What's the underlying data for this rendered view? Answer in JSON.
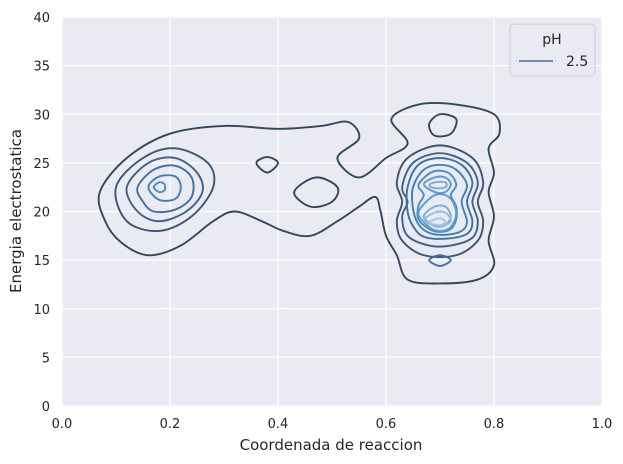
{
  "chart_data": {
    "type": "kde-contour",
    "xlabel": "Coordenada de reaccion",
    "ylabel": "Energia electrostatica",
    "xlim": [
      0.0,
      1.0
    ],
    "ylim": [
      0,
      40
    ],
    "x_ticks": [
      "0.0",
      "0.2",
      "0.4",
      "0.6",
      "0.8",
      "1.0"
    ],
    "y_ticks": [
      "0",
      "5",
      "10",
      "15",
      "20",
      "25",
      "30",
      "35",
      "40"
    ],
    "grid": true,
    "legend": {
      "title": "pH",
      "placement": "top-right",
      "entries": [
        {
          "label": "2.5",
          "color": "#4169a8"
        }
      ]
    },
    "colors": {
      "background": "#eaeaf2",
      "grid": "#ffffff",
      "outer_level": "#33475b",
      "inner_level": "#a5c8e6"
    },
    "levels": [
      {
        "level": 1,
        "color": "#33475b",
        "contours": [
          [
            [
              0.07,
              22
            ],
            [
              0.12,
              25.5
            ],
            [
              0.2,
              28
            ],
            [
              0.3,
              28.8
            ],
            [
              0.4,
              28.5
            ],
            [
              0.48,
              28.8
            ],
            [
              0.53,
              29.2
            ],
            [
              0.55,
              27.5
            ],
            [
              0.51,
              25.5
            ],
            [
              0.55,
              23.5
            ],
            [
              0.6,
              25.5
            ],
            [
              0.64,
              27
            ],
            [
              0.61,
              29.5
            ],
            [
              0.66,
              31
            ],
            [
              0.73,
              31
            ],
            [
              0.8,
              30
            ],
            [
              0.81,
              28
            ],
            [
              0.79,
              26.5
            ],
            [
              0.8,
              24
            ],
            [
              0.79,
              22
            ],
            [
              0.8,
              19.5
            ],
            [
              0.79,
              17
            ],
            [
              0.8,
              14.5
            ],
            [
              0.77,
              13
            ],
            [
              0.7,
              12.6
            ],
            [
              0.64,
              13
            ],
            [
              0.62,
              15.5
            ],
            [
              0.6,
              17.5
            ],
            [
              0.59,
              20
            ],
            [
              0.58,
              21.5
            ],
            [
              0.55,
              20.5
            ],
            [
              0.51,
              19
            ],
            [
              0.46,
              17.5
            ],
            [
              0.41,
              18
            ],
            [
              0.37,
              19
            ],
            [
              0.32,
              20
            ],
            [
              0.28,
              19
            ],
            [
              0.22,
              16.5
            ],
            [
              0.16,
              15.5
            ],
            [
              0.11,
              16.8
            ],
            [
              0.08,
              19
            ]
          ],
          [
            [
              0.36,
              25
            ],
            [
              0.38,
              24
            ],
            [
              0.4,
              25
            ],
            [
              0.38,
              25.6
            ]
          ],
          [
            [
              0.43,
              22
            ],
            [
              0.47,
              23.5
            ],
            [
              0.51,
              22.5
            ],
            [
              0.5,
              21
            ],
            [
              0.46,
              20.5
            ]
          ],
          [
            [
              0.68,
              29
            ],
            [
              0.7,
              30
            ],
            [
              0.73,
              29.5
            ],
            [
              0.72,
              28
            ],
            [
              0.69,
              27.8
            ]
          ]
        ]
      },
      {
        "level": 2,
        "color": "#3b5573",
        "contours": [
          [
            [
              0.1,
              22.5
            ],
            [
              0.15,
              25.5
            ],
            [
              0.21,
              26.5
            ],
            [
              0.27,
              25
            ],
            [
              0.28,
              22.5
            ],
            [
              0.24,
              19.5
            ],
            [
              0.18,
              18
            ],
            [
              0.12,
              19
            ]
          ],
          [
            [
              0.62,
              23
            ],
            [
              0.64,
              25.5
            ],
            [
              0.7,
              26.8
            ],
            [
              0.76,
              25.5
            ],
            [
              0.78,
              23
            ],
            [
              0.77,
              21
            ],
            [
              0.78,
              19
            ],
            [
              0.77,
              17
            ],
            [
              0.73,
              15.5
            ],
            [
              0.67,
              15.5
            ],
            [
              0.63,
              17
            ],
            [
              0.62,
              19
            ],
            [
              0.63,
              21
            ]
          ]
        ]
      },
      {
        "level": 3,
        "color": "#3d6289",
        "contours": [
          [
            [
              0.12,
              22.5
            ],
            [
              0.16,
              25
            ],
            [
              0.21,
              25.5
            ],
            [
              0.25,
              24
            ],
            [
              0.26,
              22
            ],
            [
              0.23,
              20
            ],
            [
              0.18,
              19
            ],
            [
              0.14,
              20
            ]
          ],
          [
            [
              0.63,
              22.5
            ],
            [
              0.65,
              25
            ],
            [
              0.7,
              26
            ],
            [
              0.75,
              25
            ],
            [
              0.77,
              23
            ],
            [
              0.76,
              21
            ],
            [
              0.77,
              19
            ],
            [
              0.76,
              17.3
            ],
            [
              0.72,
              16.5
            ],
            [
              0.68,
              16.5
            ],
            [
              0.64,
              17.5
            ],
            [
              0.63,
              19.5
            ],
            [
              0.64,
              21
            ]
          ]
        ]
      },
      {
        "level": 4,
        "color": "#3f6f9f",
        "contours": [
          [
            [
              0.14,
              22.5
            ],
            [
              0.17,
              24.3
            ],
            [
              0.21,
              24.7
            ],
            [
              0.24,
              23.5
            ],
            [
              0.24,
              21.5
            ],
            [
              0.21,
              20.2
            ],
            [
              0.17,
              20
            ],
            [
              0.15,
              21
            ]
          ],
          [
            [
              0.64,
              22.5
            ],
            [
              0.66,
              24.8
            ],
            [
              0.7,
              25.5
            ],
            [
              0.74,
              24.8
            ],
            [
              0.76,
              23
            ],
            [
              0.75,
              21
            ],
            [
              0.76,
              19
            ],
            [
              0.75,
              17.7
            ],
            [
              0.71,
              17.2
            ],
            [
              0.67,
              17.4
            ],
            [
              0.65,
              18.5
            ],
            [
              0.64,
              20
            ]
          ],
          [
            [
              0.68,
              15
            ],
            [
              0.7,
              15.5
            ],
            [
              0.72,
              15
            ],
            [
              0.7,
              14.4
            ]
          ]
        ]
      },
      {
        "level": 5,
        "color": "#437fb3",
        "contours": [
          [
            [
              0.16,
              22.5
            ],
            [
              0.18,
              23.6
            ],
            [
              0.21,
              23.6
            ],
            [
              0.22,
              22.5
            ],
            [
              0.21,
              21.3
            ],
            [
              0.18,
              21.2
            ]
          ],
          [
            [
              0.65,
              22.5
            ],
            [
              0.67,
              24.3
            ],
            [
              0.7,
              24.8
            ],
            [
              0.73,
              24.3
            ],
            [
              0.75,
              22.7
            ],
            [
              0.74,
              21
            ],
            [
              0.75,
              19
            ],
            [
              0.74,
              18
            ],
            [
              0.71,
              17.6
            ],
            [
              0.68,
              17.8
            ],
            [
              0.66,
              18.7
            ],
            [
              0.65,
              20.3
            ]
          ]
        ]
      },
      {
        "level": 6,
        "color": "#4a8cc2",
        "contours": [
          [
            [
              0.17,
              22.5
            ],
            [
              0.18,
              23
            ],
            [
              0.19,
              22.8
            ],
            [
              0.19,
              22.2
            ],
            [
              0.18,
              22
            ]
          ],
          [
            [
              0.66,
              22.7
            ],
            [
              0.68,
              23.9
            ],
            [
              0.7,
              24.2
            ],
            [
              0.72,
              23.8
            ],
            [
              0.73,
              22.7
            ],
            [
              0.72,
              21.7
            ],
            [
              0.73,
              20.5
            ],
            [
              0.73,
              19.2
            ],
            [
              0.72,
              18.2
            ],
            [
              0.7,
              17.9
            ],
            [
              0.68,
              18.2
            ],
            [
              0.66,
              19.2
            ],
            [
              0.66,
              20.6
            ],
            [
              0.67,
              21.7
            ]
          ]
        ]
      },
      {
        "level": 7,
        "color": "#5d9ccd",
        "contours": [
          [
            [
              0.67,
              22.8
            ],
            [
              0.69,
              23.5
            ],
            [
              0.71,
              23.5
            ],
            [
              0.72,
              22.8
            ],
            [
              0.71,
              22
            ],
            [
              0.69,
              22
            ]
          ],
          [
            [
              0.66,
              19.8
            ],
            [
              0.68,
              21.3
            ],
            [
              0.7,
              21.8
            ],
            [
              0.72,
              21.3
            ],
            [
              0.73,
              19.8
            ],
            [
              0.72,
              18.4
            ],
            [
              0.7,
              18
            ],
            [
              0.68,
              18.4
            ]
          ]
        ]
      },
      {
        "level": 8,
        "color": "#78aed6",
        "contours": [
          [
            [
              0.68,
              22.7
            ],
            [
              0.69,
              23
            ],
            [
              0.71,
              23
            ],
            [
              0.71,
              22.5
            ],
            [
              0.69,
              22.4
            ]
          ],
          [
            [
              0.67,
              19.5
            ],
            [
              0.69,
              20.5
            ],
            [
              0.71,
              20.5
            ],
            [
              0.72,
              19.5
            ],
            [
              0.71,
              18.6
            ],
            [
              0.69,
              18.5
            ]
          ]
        ]
      },
      {
        "level": 9,
        "color": "#92bde0",
        "contours": [
          [
            [
              0.67,
              19.1
            ],
            [
              0.69,
              19.9
            ],
            [
              0.71,
              19.9
            ],
            [
              0.72,
              19.1
            ],
            [
              0.71,
              18.6
            ],
            [
              0.69,
              18.6
            ]
          ]
        ]
      },
      {
        "level": 10,
        "color": "#a5c8e6",
        "contours": [
          [
            [
              0.68,
              18.9
            ],
            [
              0.7,
              19.3
            ],
            [
              0.71,
              18.9
            ],
            [
              0.7,
              18.6
            ]
          ]
        ]
      }
    ]
  }
}
